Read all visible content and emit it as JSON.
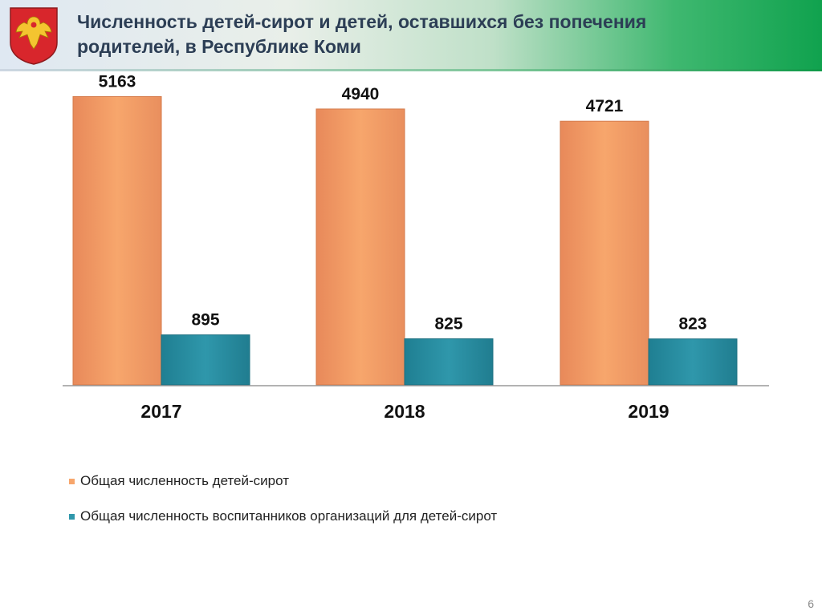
{
  "header": {
    "title": "Численность детей-сирот и детей, оставшихся без попечения родителей, в Республике Коми"
  },
  "colors": {
    "series1": "#f7a66c",
    "series2": "#2f97ab"
  },
  "chart_data": {
    "type": "bar",
    "categories": [
      "2017",
      "2018",
      "2019"
    ],
    "series": [
      {
        "name": "Общая численность детей-сирот",
        "values": [
          5163,
          4940,
          4721
        ]
      },
      {
        "name": "Общая численность воспитанников организаций для детей-сирот",
        "values": [
          895,
          825,
          823
        ]
      }
    ],
    "title": "",
    "xlabel": "",
    "ylabel": "",
    "ylim": [
      0,
      5700
    ],
    "grid": false,
    "legend": "bottom-left"
  },
  "footer": {
    "page_number": "6"
  }
}
